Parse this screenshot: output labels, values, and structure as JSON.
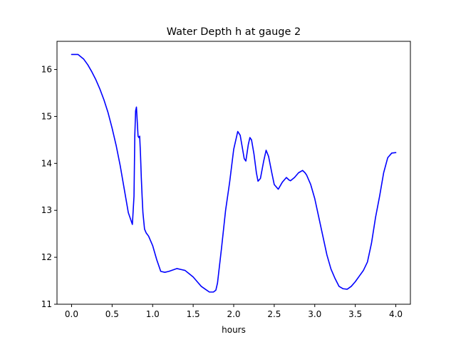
{
  "chart_data": {
    "type": "line",
    "title": "Water Depth h at gauge 2",
    "xlabel": "hours",
    "ylabel": "",
    "xlim": [
      -0.18,
      4.18
    ],
    "ylim": [
      11.0,
      16.6
    ],
    "xticks": [
      0.0,
      0.5,
      1.0,
      1.5,
      2.0,
      2.5,
      3.0,
      3.5,
      4.0
    ],
    "xtick_labels": [
      "0.0",
      "0.5",
      "1.0",
      "1.5",
      "2.0",
      "2.5",
      "3.0",
      "3.5",
      "4.0"
    ],
    "yticks": [
      11,
      12,
      13,
      14,
      15,
      16
    ],
    "ytick_labels": [
      "11",
      "12",
      "13",
      "14",
      "15",
      "16"
    ],
    "grid": false,
    "colors": {
      "line": "#0000ff",
      "axes": "#000000",
      "background": "#ffffff"
    },
    "series": [
      {
        "x": [
          0.0,
          0.08,
          0.15,
          0.2,
          0.25,
          0.3,
          0.35,
          0.4,
          0.45,
          0.5,
          0.55,
          0.6,
          0.65,
          0.7,
          0.75,
          0.77,
          0.78,
          0.79,
          0.8,
          0.81,
          0.82,
          0.83,
          0.84,
          0.85,
          0.86,
          0.87,
          0.88,
          0.9,
          0.92,
          0.95,
          1.0,
          1.05,
          1.1,
          1.15,
          1.2,
          1.25,
          1.3,
          1.35,
          1.4,
          1.45,
          1.5,
          1.55,
          1.6,
          1.65,
          1.7,
          1.75,
          1.78,
          1.8,
          1.85,
          1.9,
          1.95,
          2.0,
          2.05,
          2.08,
          2.1,
          2.13,
          2.15,
          2.18,
          2.2,
          2.22,
          2.25,
          2.28,
          2.3,
          2.33,
          2.37,
          2.4,
          2.43,
          2.47,
          2.5,
          2.55,
          2.6,
          2.65,
          2.68,
          2.7,
          2.75,
          2.8,
          2.85,
          2.88,
          2.9,
          2.95,
          3.0,
          3.05,
          3.1,
          3.15,
          3.2,
          3.25,
          3.3,
          3.35,
          3.4,
          3.45,
          3.5,
          3.55,
          3.6,
          3.65,
          3.7,
          3.75,
          3.8,
          3.85,
          3.9,
          3.95,
          4.0
        ],
        "values": [
          16.32,
          16.32,
          16.22,
          16.1,
          15.95,
          15.78,
          15.58,
          15.35,
          15.08,
          14.75,
          14.38,
          13.95,
          13.45,
          12.95,
          12.7,
          13.3,
          14.6,
          15.12,
          15.2,
          14.9,
          14.58,
          14.55,
          14.58,
          14.2,
          13.7,
          13.3,
          12.95,
          12.6,
          12.52,
          12.45,
          12.25,
          11.95,
          11.7,
          11.68,
          11.7,
          11.73,
          11.76,
          11.74,
          11.72,
          11.65,
          11.58,
          11.48,
          11.38,
          11.32,
          11.26,
          11.26,
          11.3,
          11.45,
          12.2,
          13.0,
          13.6,
          14.3,
          14.68,
          14.6,
          14.4,
          14.1,
          14.05,
          14.4,
          14.55,
          14.5,
          14.2,
          13.8,
          13.62,
          13.68,
          14.05,
          14.28,
          14.15,
          13.8,
          13.55,
          13.45,
          13.6,
          13.7,
          13.65,
          13.63,
          13.7,
          13.8,
          13.85,
          13.8,
          13.75,
          13.55,
          13.25,
          12.85,
          12.45,
          12.05,
          11.75,
          11.55,
          11.38,
          11.33,
          11.32,
          11.38,
          11.48,
          11.6,
          11.72,
          11.9,
          12.3,
          12.85,
          13.3,
          13.8,
          14.12,
          14.22,
          14.23
        ]
      }
    ]
  }
}
